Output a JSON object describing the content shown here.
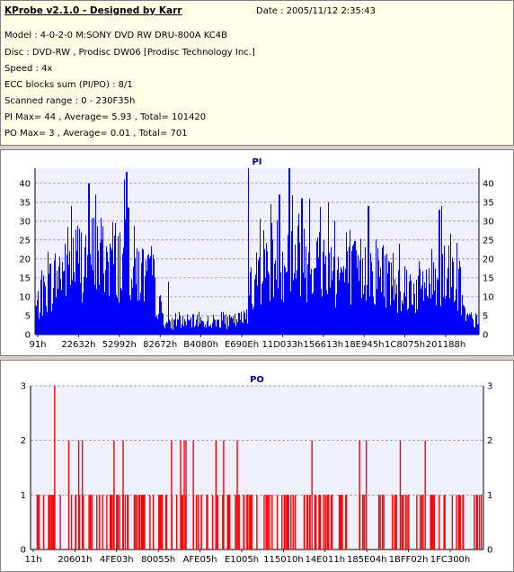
{
  "app_title": "KProbe v2.1.0 - Designed by Karr",
  "date_line": "Date : 2005/11/12 2:35:43",
  "info_lines": [
    "Model : 4-0-2-0 M:SONY    DVD RW DRU-800A  KC4B",
    "Disc : DVD-RW , Prodisc DW06 [Prodisc Technology Inc.]",
    "Speed : 4x",
    "ECC blocks sum (PI/PO) : 8/1",
    "Scanned range : 0 - 230F35h",
    "PI Max= 44 , Average= 5.93 , Total= 101420",
    "PO Max= 3 , Average= 0.01 , Total= 701"
  ],
  "colors": {
    "pi_bar": "#0000ff",
    "po_bar": "#ff0000",
    "plot_bg": "#f0f0ff",
    "grid": "#8080a0",
    "title": "#000080"
  },
  "chart_data": [
    {
      "type": "bar",
      "title": "PI",
      "xlabel": "",
      "ylabel": "",
      "ylim": [
        0,
        44
      ],
      "yticks": [
        0,
        5,
        10,
        15,
        20,
        25,
        30,
        35,
        40
      ],
      "xticks": [
        "91h",
        "22632h",
        "52992h",
        "82672h",
        "B4080h",
        "E690Eh",
        "11D033h",
        "156613h",
        "18E945h",
        "1C8075h",
        "201188h"
      ],
      "xlim": [
        0,
        2297653
      ],
      "grid": true,
      "profile_x": [
        0,
        0.03,
        0.07,
        0.12,
        0.17,
        0.22,
        0.26,
        0.29,
        0.3,
        0.32,
        0.36,
        0.4,
        0.44,
        0.47,
        0.5,
        0.51,
        0.55,
        0.6,
        0.65,
        0.7,
        0.74,
        0.78,
        0.82,
        0.86,
        0.9,
        0.93,
        0.95,
        0.97,
        1.0
      ],
      "profile_y": [
        8,
        15,
        22,
        25,
        24,
        22,
        16,
        5,
        3,
        4,
        4,
        4,
        4,
        5,
        18,
        22,
        24,
        25,
        22,
        18,
        20,
        20,
        16,
        14,
        18,
        22,
        16,
        5,
        4
      ],
      "spikes": [
        [
          0.12,
          40
        ],
        [
          0.2,
          41
        ],
        [
          0.205,
          43
        ],
        [
          0.48,
          44
        ],
        [
          0.572,
          44
        ],
        [
          0.3,
          14
        ],
        [
          0.55,
          37
        ],
        [
          0.6,
          36
        ],
        [
          0.66,
          35
        ],
        [
          0.91,
          33
        ],
        [
          0.915,
          34
        ],
        [
          0.75,
          34
        ]
      ],
      "max": 44,
      "average": 5.93
    },
    {
      "type": "bar",
      "title": "PO",
      "xlabel": "",
      "ylabel": "",
      "ylim": [
        0,
        3
      ],
      "yticks": [
        0,
        1,
        2,
        3
      ],
      "xticks": [
        "11h",
        "20601h",
        "4FE03h",
        "80055h",
        "AFE05h",
        "E1005h",
        "115010h",
        "14E011h",
        "185E04h",
        "1BFF02h",
        "1FC300h"
      ],
      "xlim": [
        0,
        2297653
      ],
      "grid": true,
      "events_3": [
        0.052
      ],
      "events_2": [
        0.083,
        0.105,
        0.113,
        0.183,
        0.203,
        0.31,
        0.33,
        0.338,
        0.342,
        0.358,
        0.408,
        0.425,
        0.455,
        0.62,
        0.725,
        0.74,
        0.815,
        0.87
      ],
      "max": 3,
      "average": 0.01
    }
  ]
}
